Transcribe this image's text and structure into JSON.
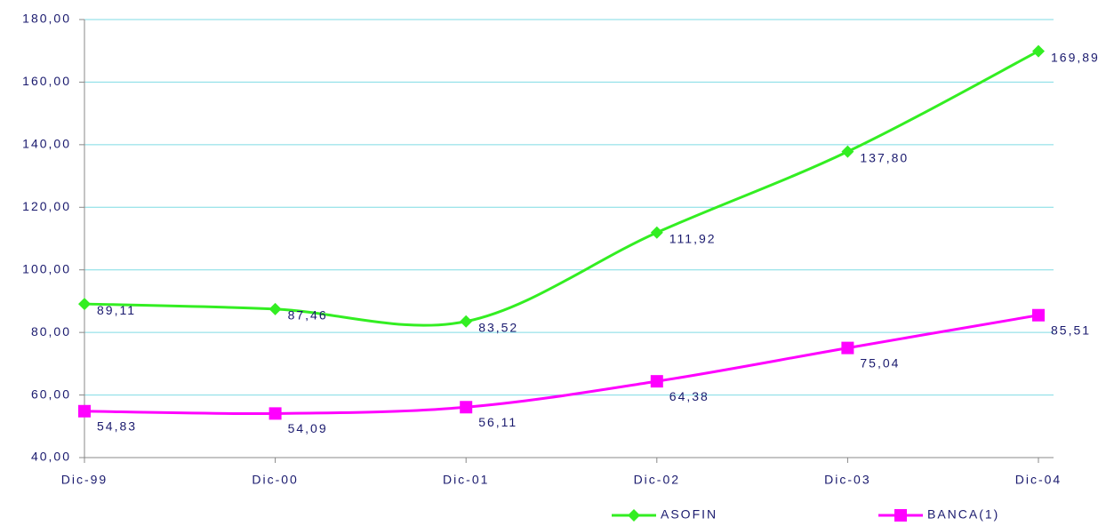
{
  "chart_data": {
    "type": "line",
    "categories": [
      "Dic-99",
      "Dic-00",
      "Dic-01",
      "Dic-02",
      "Dic-03",
      "Dic-04"
    ],
    "series": [
      {
        "name": "ASOFIN",
        "color": "#33ee22",
        "marker": "diamond",
        "values": [
          89.11,
          87.46,
          83.52,
          111.92,
          137.8,
          169.89
        ],
        "value_labels": [
          "89,11",
          "87,46",
          "83,52",
          "111,92",
          "137,80",
          "169,89"
        ]
      },
      {
        "name": "BANCA(1)",
        "color": "#ff00ff",
        "marker": "square",
        "values": [
          54.83,
          54.09,
          56.11,
          64.38,
          75.04,
          85.51
        ],
        "value_labels": [
          "54,83",
          "54,09",
          "56,11",
          "64,38",
          "75,04",
          "85,51"
        ]
      }
    ],
    "ylim": [
      40,
      180
    ],
    "yticks": [
      {
        "value": 40,
        "label": "40,00"
      },
      {
        "value": 60,
        "label": "60,00"
      },
      {
        "value": 80,
        "label": "80,00"
      },
      {
        "value": 100,
        "label": "100,00"
      },
      {
        "value": 120,
        "label": "120,00"
      },
      {
        "value": 140,
        "label": "140,00"
      },
      {
        "value": 160,
        "label": "160,00"
      },
      {
        "value": 180,
        "label": "180,00"
      }
    ],
    "grid": true,
    "smooth": true,
    "legend": "bottom"
  }
}
